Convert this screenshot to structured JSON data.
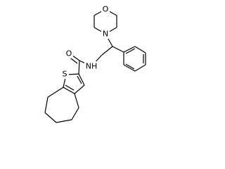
{
  "atoms": [
    "O",
    "N",
    "NH",
    "O",
    "S"
  ]
}
